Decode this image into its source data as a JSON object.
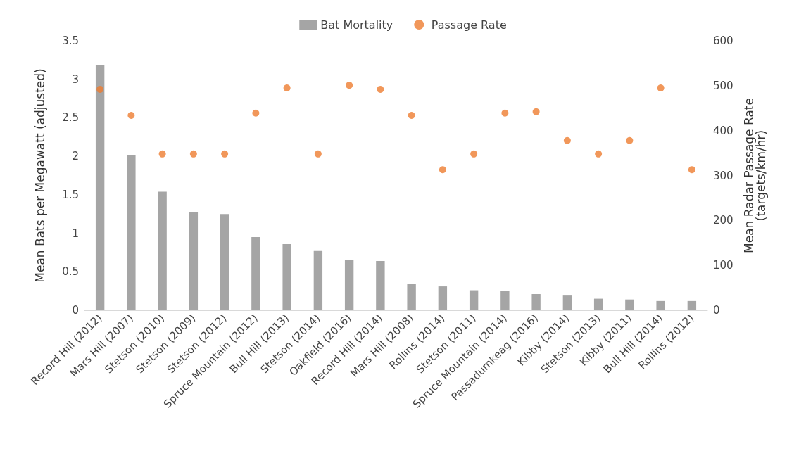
{
  "chart_data": {
    "type": "bar",
    "ylabel": "Mean Bats per Megawatt (adjusted)",
    "y2label": "Mean Radar Passage Rate\n(targets/km/hr)",
    "categories": [
      "Record Hill (2012)",
      "Mars Hill (2007)",
      "Stetson (2010)",
      "Stetson (2009)",
      "Stetson (2012)",
      "Spruce Mountain (2012)",
      "Bull Hill (2013)",
      "Stetson (2014)",
      "Oakfield (2016)",
      "Record Hill (2014)",
      "Mars Hill (2008)",
      "Rollins (2014)",
      "Stetson (2011)",
      "Spruce Mountain (2014)",
      "Passadumkeag (2016)",
      "Kibby (2014)",
      "Stetson (2013)",
      "Kibby (2011)",
      "Bull Hill (2014)",
      "Rollins (2012)"
    ],
    "series": [
      {
        "name": "Bat Mortality",
        "color": "#a5a5a5",
        "values": [
          3.19,
          2.02,
          1.54,
          1.27,
          1.25,
          0.95,
          0.86,
          0.77,
          0.65,
          0.64,
          0.34,
          0.31,
          0.26,
          0.25,
          0.21,
          0.2,
          0.15,
          0.14,
          0.12,
          0.12
        ]
      },
      {
        "name": "Passage Rate",
        "type": "scatter",
        "axis": "y2",
        "color": "#ed7d31",
        "values": [
          492,
          434,
          348,
          348,
          348,
          439,
          495,
          348,
          501,
          492,
          434,
          313,
          348,
          439,
          442,
          378,
          348,
          378,
          495,
          313
        ]
      }
    ],
    "ylim": [
      0,
      3.5
    ],
    "yticks": [
      0,
      0.5,
      1,
      1.5,
      2,
      2.5,
      3,
      3.5
    ],
    "y2lim": [
      0,
      600
    ],
    "y2ticks": [
      0,
      100,
      200,
      300,
      400,
      500,
      600
    ],
    "grid": false,
    "legend": "top",
    "marker": "circle"
  }
}
